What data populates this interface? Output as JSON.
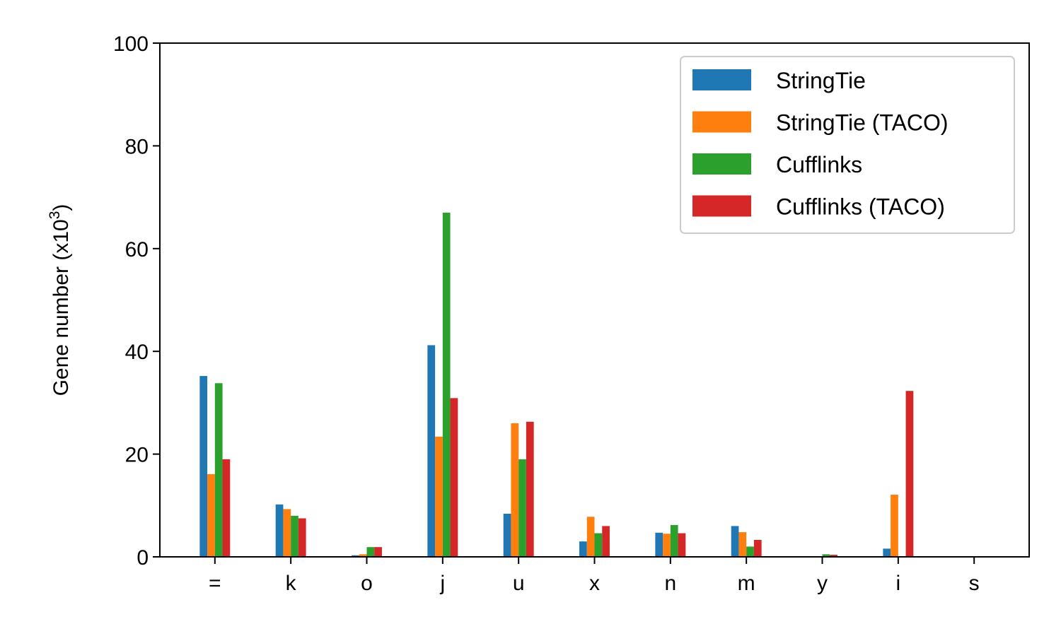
{
  "chart_data": {
    "type": "bar",
    "title": "",
    "xlabel": "",
    "ylabel": "Gene number (x10",
    "ylabel_exponent": "3",
    "ylabel_suffix": ")",
    "ylim": [
      0,
      100
    ],
    "yticks": [
      0,
      20,
      40,
      60,
      80,
      100
    ],
    "grid": false,
    "legend_position": "top-right",
    "categories": [
      "=",
      "k",
      "o",
      "j",
      "u",
      "x",
      "n",
      "m",
      "y",
      "i",
      "s"
    ],
    "series": [
      {
        "name": "StringTie",
        "color": "#1f77b4",
        "values": [
          35.2,
          10.2,
          0.3,
          41.2,
          8.4,
          3.0,
          4.7,
          6.0,
          0.1,
          1.6,
          0.0
        ]
      },
      {
        "name": "StringTie (TACO)",
        "color": "#ff7f0e",
        "values": [
          16.1,
          9.3,
          0.5,
          23.4,
          26.0,
          7.8,
          4.5,
          4.8,
          0.1,
          12.1,
          0.0
        ]
      },
      {
        "name": "Cufflinks",
        "color": "#2ca02c",
        "values": [
          33.8,
          8.0,
          1.9,
          67.0,
          19.0,
          4.6,
          6.2,
          2.0,
          0.5,
          0.0,
          0.0
        ]
      },
      {
        "name": "Cufflinks (TACO)",
        "color": "#d62728",
        "values": [
          19.0,
          7.5,
          1.9,
          30.9,
          26.3,
          6.0,
          4.6,
          3.3,
          0.4,
          32.3,
          0.0
        ]
      }
    ]
  }
}
